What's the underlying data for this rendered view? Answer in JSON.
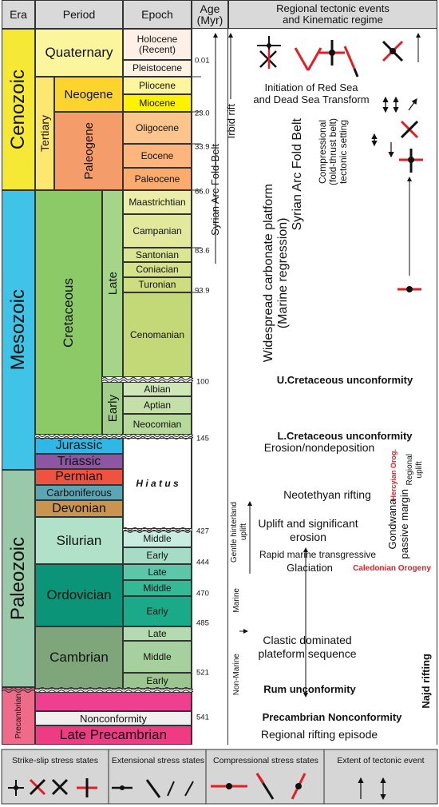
{
  "headers": {
    "era": "Era",
    "period": "Period",
    "epoch": "Epoch",
    "age": "Age\n(Myr)",
    "events": "Regional tectonic events\nand Kinematic regime"
  },
  "eras": {
    "cenozoic": "Cenozoic",
    "mesozoic": "Mesozoic",
    "paleozoic": "Paleozoic",
    "precambrian": "Precambrian"
  },
  "periods": {
    "quaternary": "Quaternary",
    "tertiary": "Tertiary",
    "neogene": "Neogene",
    "paleogene": "Paleogene",
    "cretaceous": "Cretaceous",
    "late": "Late",
    "early": "Early",
    "jurassic": "Jurassic",
    "triassic": "Triassic",
    "permian": "Permian",
    "carboniferous": "Carboniferous",
    "devonian": "Devonian",
    "silurian": "Silurian",
    "ordovician": "Ordovician",
    "cambrian": "Cambrian",
    "nonconformity": "Nonconformity",
    "late_precambrian": "Late Precambrian"
  },
  "epochs": {
    "holocene": "Holocene\n(Recent)",
    "pleistocene": "Pleistocene",
    "pliocene": "Pliocene",
    "miocene": "Miocene",
    "oligocene": "Oligocene",
    "eocene": "Eocene",
    "paleocene": "Paleocene",
    "maastrichtian": "Maastrichtian",
    "campanian": "Campanian",
    "santonian": "Santonian",
    "coniacian": "Coniacian",
    "turonian": "Turonian",
    "cenomanian": "Cenomanian",
    "albian": "Albian",
    "aptian": "Aptian",
    "neocomian": "Neocomian",
    "hiatus": "H i a t u s",
    "sil_middle": "Middle",
    "sil_early": "Early",
    "ord_late": "Late",
    "ord_middle": "Middle",
    "ord_early": "Early",
    "cam_late": "Late",
    "cam_middle": "Middle",
    "cam_early": "Early"
  },
  "ages": [
    "0.01",
    "23.0",
    "33.9",
    "66.0",
    "83.6",
    "93.9",
    "100",
    "145",
    "427",
    "444",
    "470",
    "485",
    "521",
    "541"
  ],
  "events": {
    "irbid_rift": "Irbid rift",
    "syrian_arc_belt": "Syrian Arc Fold-Belt",
    "red_sea": "Initiation of Red Sea\nand Dead Sea Transform",
    "syrian_arc_fold_belt": "Syrian Arc Fold Belt",
    "compressional": "Compressional\n(fold-thrust belt)\ntectonic setting",
    "carbonate_platform": "Widespread carbonate platform\n(Marine regression)",
    "u_cret": "U.Cretaceous unconformity",
    "l_cret": "L.Cretaceous unconformity",
    "erosion": "Erosion/nondeposition",
    "hercynian": "Hercyian Orog.",
    "regional_uplift": "Regional\nuplift",
    "neotethyan": "Neotethyan rifting",
    "gentle_uplift": "Gentle hinterland\nuplift",
    "uplift_erosion": "Uplift and significant\nerosion",
    "gondwana": "Gondwana\npassive margin",
    "rapid_marine": "Rapid marine transgressive",
    "glaciation": "Glaciation",
    "caledonian": "Caledonian Orogeny",
    "non_marine": "Non-Marine",
    "marine": "Marine",
    "clastic": "Clastic dominated\nplateform sequence",
    "najd": "Najd rifting",
    "rum": "Rum unconformity",
    "precambrian_nonconf": "Precambrian Nonconformity",
    "regional_rifting": "Regional rifting episode"
  },
  "legend": {
    "strike_slip": "Strike-slip stress states",
    "extensional": "Extensional stress states",
    "compressional": "Compressional stress states",
    "extent": "Extent of tectonic event"
  },
  "colors": {
    "stress_arrow": "#e31e24",
    "neutral_arrow": "#111111"
  }
}
